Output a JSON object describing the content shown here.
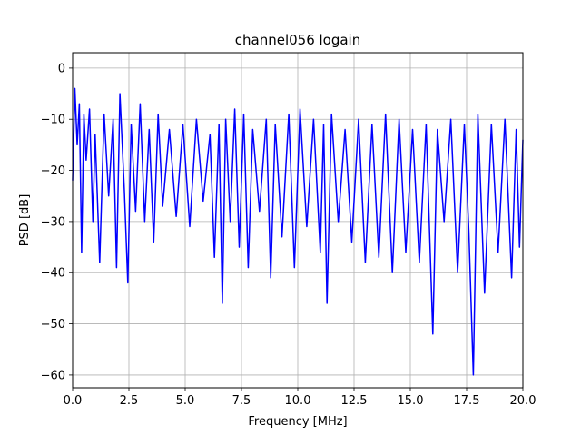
{
  "chart_data": {
    "type": "line",
    "title": "channel056 logain",
    "xlabel": "Frequency [MHz]",
    "ylabel": "PSD [dB]",
    "xlim": [
      0,
      20
    ],
    "ylim": [
      -62.5,
      3
    ],
    "x_ticks": [
      0.0,
      2.5,
      5.0,
      7.5,
      10.0,
      12.5,
      15.0,
      17.5,
      20.0
    ],
    "x_tick_labels": [
      "0.0",
      "2.5",
      "5.0",
      "7.5",
      "10.0",
      "12.5",
      "15.0",
      "17.5",
      "20.0"
    ],
    "y_ticks": [
      0,
      -10,
      -20,
      -30,
      -40,
      -50,
      -60
    ],
    "y_tick_labels": [
      "0",
      "−10",
      "−20",
      "−30",
      "−40",
      "−50",
      "−60"
    ],
    "grid": true,
    "line_color": "#0000ff",
    "series": [
      {
        "x": [
          0.0,
          0.1,
          0.2,
          0.3,
          0.4,
          0.5,
          0.6,
          0.75,
          0.9,
          1.0,
          1.2,
          1.4,
          1.6,
          1.8,
          1.95,
          2.1,
          2.3,
          2.45,
          2.6,
          2.8,
          3.0,
          3.2,
          3.4,
          3.6,
          3.8,
          4.0,
          4.3,
          4.6,
          4.9,
          5.2,
          5.5,
          5.8,
          6.1,
          6.3,
          6.5,
          6.65,
          6.8,
          7.0,
          7.2,
          7.4,
          7.6,
          7.8,
          8.0,
          8.3,
          8.6,
          8.8,
          9.0,
          9.3,
          9.6,
          9.85,
          10.1,
          10.4,
          10.7,
          11.0,
          11.15,
          11.3,
          11.5,
          11.8,
          12.1,
          12.4,
          12.7,
          13.0,
          13.3,
          13.6,
          13.9,
          14.2,
          14.5,
          14.8,
          15.1,
          15.4,
          15.7,
          16.0,
          16.2,
          16.5,
          16.8,
          17.1,
          17.4,
          17.6,
          17.8,
          18.0,
          18.3,
          18.6,
          18.9,
          19.2,
          19.5,
          19.7,
          19.85,
          20.0
        ],
        "values": [
          -22,
          -4,
          -15,
          -7,
          -36,
          -9,
          -18,
          -8,
          -30,
          -13,
          -38,
          -9,
          -25,
          -10,
          -39,
          -5,
          -24,
          -42,
          -11,
          -28,
          -7,
          -30,
          -12,
          -34,
          -9,
          -27,
          -12,
          -29,
          -11,
          -31,
          -10,
          -26,
          -13,
          -37,
          -11,
          -46,
          -10,
          -30,
          -8,
          -35,
          -9,
          -39,
          -12,
          -28,
          -10,
          -41,
          -11,
          -33,
          -9,
          -39,
          -8,
          -31,
          -10,
          -36,
          -11,
          -46,
          -9,
          -30,
          -12,
          -34,
          -10,
          -38,
          -11,
          -37,
          -9,
          -40,
          -10,
          -36,
          -12,
          -38,
          -11,
          -52,
          -12,
          -30,
          -10,
          -40,
          -11,
          -32,
          -60,
          -9,
          -44,
          -11,
          -36,
          -10,
          -41,
          -12,
          -35,
          -14
        ]
      }
    ]
  }
}
